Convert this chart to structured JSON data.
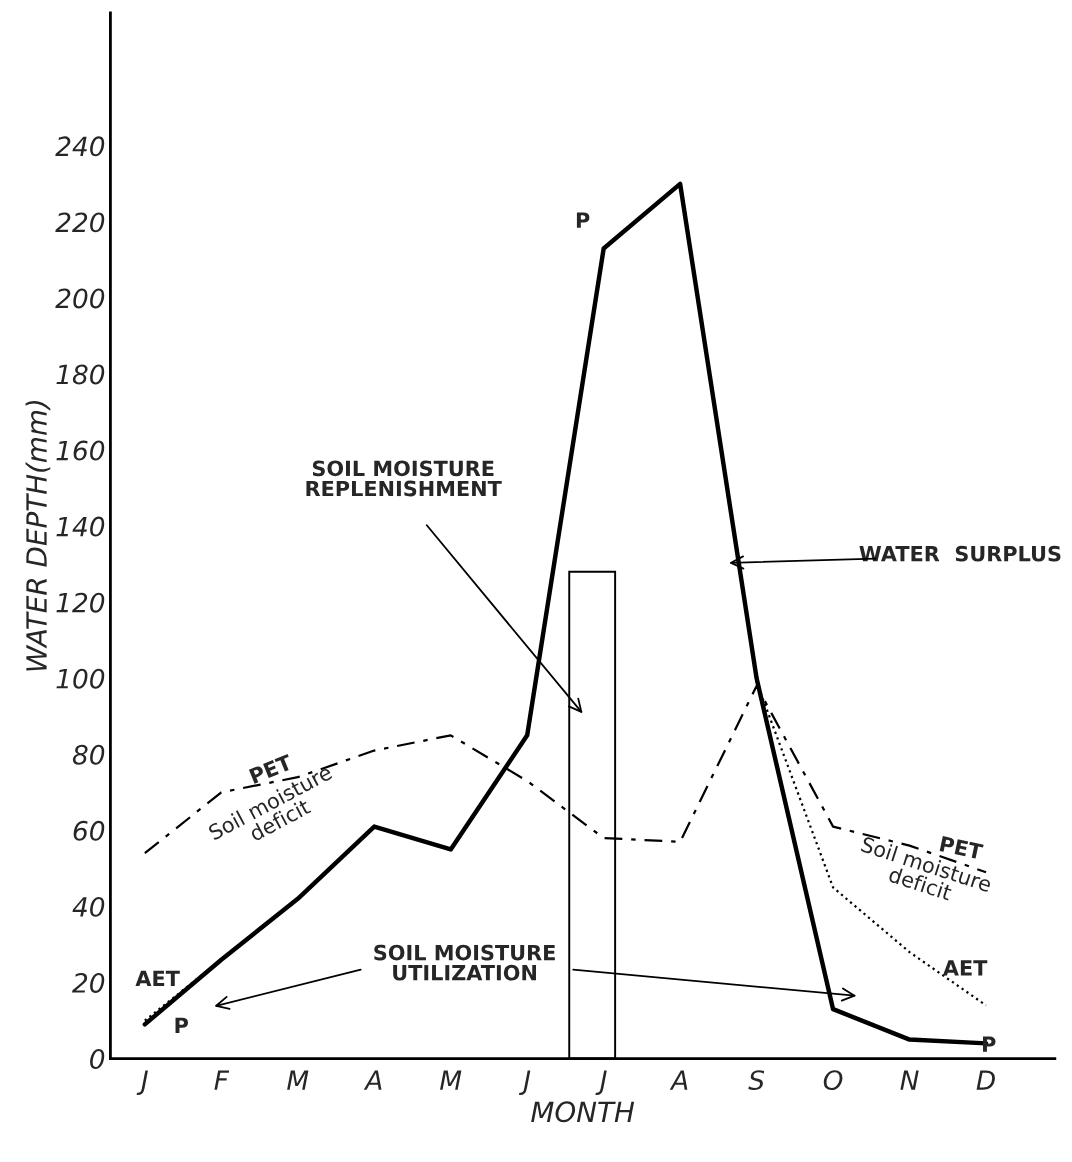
{
  "chart_data": {
    "type": "line",
    "xlabel": "MONTH",
    "ylabel": "WATER DEPTH(mm)",
    "categories": [
      "J",
      "F",
      "M",
      "A",
      "M",
      "J",
      "J",
      "A",
      "S",
      "O",
      "N",
      "D"
    ],
    "ylim": [
      0,
      275
    ],
    "yticks": [
      0,
      20,
      40,
      60,
      80,
      100,
      120,
      140,
      160,
      180,
      200,
      220,
      240
    ],
    "grid": false,
    "marker": "none",
    "series": [
      {
        "color": "#000000",
        "line_style": "solid",
        "values": [
          9,
          26,
          42,
          61,
          55,
          85,
          213,
          230,
          100,
          13,
          5,
          4
        ]
      },
      {
        "color": "#000000",
        "line_style": "dashed",
        "values": [
          54,
          70,
          74,
          81,
          85,
          73,
          58,
          57,
          98,
          61,
          56,
          49
        ]
      },
      {
        "color": "#000000",
        "line_style": "dotted",
        "values": [
          10,
          26,
          null,
          null,
          null,
          null,
          null,
          null,
          99,
          45,
          28,
          14
        ]
      },
      {
        "type": "bar",
        "color": "#000000",
        "values": [
          null,
          null,
          null,
          null,
          null,
          null,
          128,
          null,
          null,
          null,
          null,
          null
        ]
      }
    ],
    "annotations": [
      "P",
      "P",
      "P",
      "PET",
      "PET",
      "AET",
      "AET",
      "Soil moisture\ndeficit",
      "Soil moisture\ndeficit",
      "SOIL MOISTURE\nREPLENISHMENT",
      "WATER  SURPLUS",
      "SOIL MOISTURE\nUTILIZATION"
    ]
  }
}
